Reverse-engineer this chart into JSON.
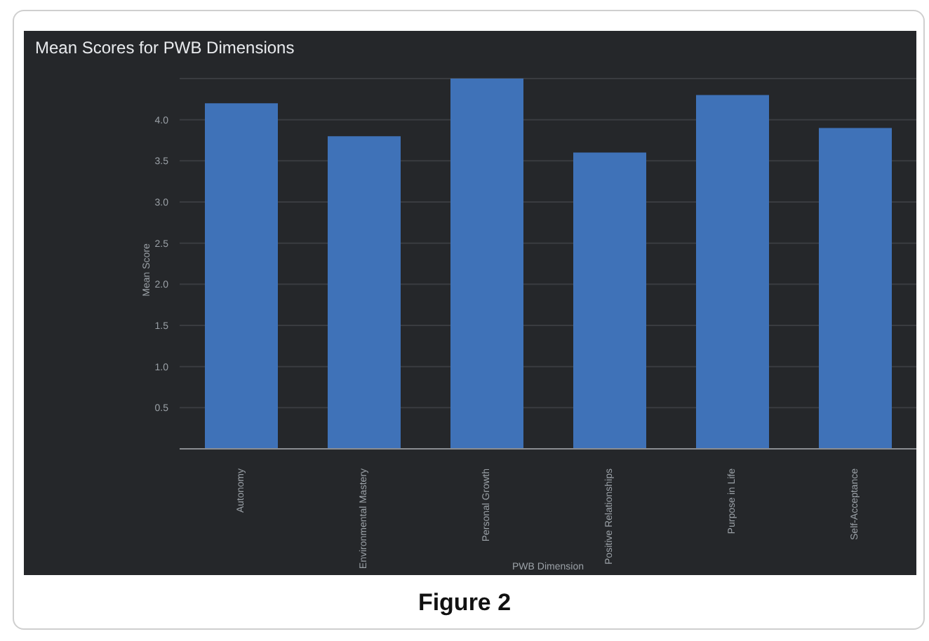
{
  "chart_data": {
    "type": "bar",
    "title": "Mean Scores for PWB Dimensions",
    "xlabel": "PWB Dimension",
    "ylabel": "Mean Score",
    "categories": [
      "Autonomy",
      "Environmental Mastery",
      "Personal Growth",
      "Positive Relationships",
      "Purpose in Life",
      "Self-Acceptance"
    ],
    "values": [
      4.2,
      3.8,
      4.5,
      3.6,
      4.3,
      3.9
    ],
    "color": "#3f72b8",
    "ylim": [
      0,
      4.5
    ],
    "yticks": [
      {
        "value": 0,
        "label": null
      },
      {
        "value": 0.5,
        "label": "0.5"
      },
      {
        "value": 1,
        "label": "1.0"
      },
      {
        "value": 1.5,
        "label": "1.5"
      },
      {
        "value": 2,
        "label": "2.0"
      },
      {
        "value": 2.5,
        "label": "2.5"
      },
      {
        "value": 3,
        "label": "3.0"
      },
      {
        "value": 3.5,
        "label": "3.5"
      },
      {
        "value": 4,
        "label": "4.0"
      },
      {
        "value": 4.5,
        "label": null
      }
    ],
    "grid": "y",
    "annotations": [
      "Figure 2"
    ]
  }
}
